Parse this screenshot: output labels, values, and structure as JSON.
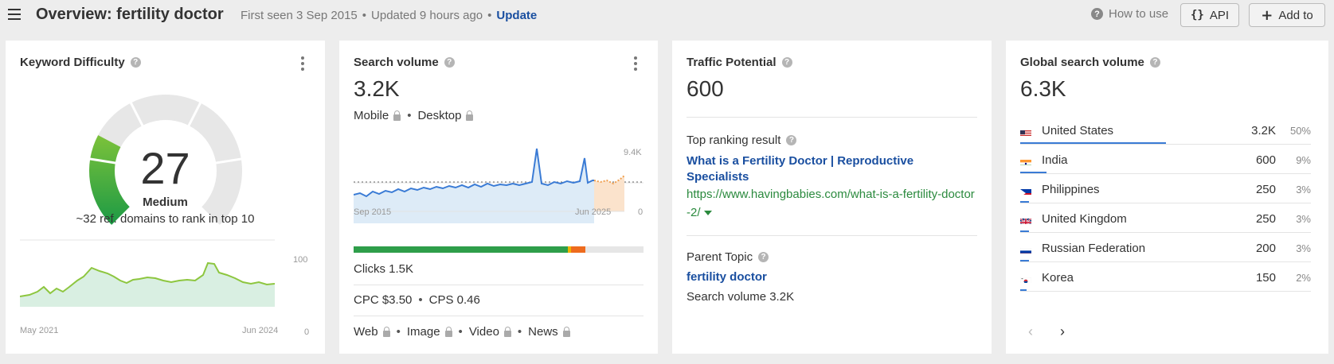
{
  "header": {
    "title": "Overview: fertility doctor",
    "first_seen": "First seen 3 Sep 2015",
    "updated": "Updated 9 hours ago",
    "update_label": "Update",
    "how_to_use": "How to use",
    "api_label": "API",
    "add_to_label": "Add to"
  },
  "kd": {
    "title": "Keyword Difficulty",
    "value": "27",
    "level": "Medium",
    "subtitle": "~32 ref. domains to rank in top 10",
    "chart_x_start": "May 2021",
    "chart_x_end": "Jun 2024",
    "chart_y_max": "100",
    "chart_y_min": "0",
    "gauge_fraction": 0.27
  },
  "search_volume": {
    "title": "Search volume",
    "value": "3.2K",
    "mobile": "Mobile",
    "desktop": "Desktop",
    "chart_x_start": "Sep 2015",
    "chart_x_end": "Jun 2025",
    "chart_y_max": "9.4K",
    "chart_y_min": "0",
    "clicks": "Clicks 1.5K",
    "cpc": "CPC $3.50",
    "cps": "CPS 0.46",
    "serp_types": [
      "Web",
      "Image",
      "Video",
      "News"
    ],
    "click_split": {
      "organic": 0.74,
      "paid_a": 0.01,
      "paid_b": 0.09
    }
  },
  "traffic_potential": {
    "title": "Traffic Potential",
    "value": "600",
    "top_ranking_label": "Top ranking result",
    "top_ranking_title": "What is a Fertility Doctor | Reproductive Specialists",
    "top_ranking_url": "https://www.havingbabies.com/what-is-a-fertility-doctor-2/",
    "parent_topic_label": "Parent Topic",
    "parent_topic": "fertility doctor",
    "parent_sv": "Search volume 3.2K"
  },
  "global": {
    "title": "Global search volume",
    "value": "6.3K",
    "countries": [
      {
        "name": "United States",
        "volume": "3.2K",
        "pct": "50%",
        "share": 0.5,
        "flag": "us-flag-icon"
      },
      {
        "name": "India",
        "volume": "600",
        "pct": "9%",
        "share": 0.09,
        "flag": "india-flag-icon"
      },
      {
        "name": "Philippines",
        "volume": "250",
        "pct": "3%",
        "share": 0.03,
        "flag": "philippines-flag-icon"
      },
      {
        "name": "United Kingdom",
        "volume": "250",
        "pct": "3%",
        "share": 0.03,
        "flag": "uk-flag-icon"
      },
      {
        "name": "Russian Federation",
        "volume": "200",
        "pct": "3%",
        "share": 0.03,
        "flag": "russia-flag-icon"
      },
      {
        "name": "Korea",
        "volume": "150",
        "pct": "2%",
        "share": 0.02,
        "flag": "korea-flag-icon"
      }
    ]
  },
  "colors": {
    "accent_blue": "#1a4fa0",
    "url_green": "#2b8a3e",
    "gauge_green": "#2e9e4a",
    "line_blue": "#3a7bd5"
  }
}
